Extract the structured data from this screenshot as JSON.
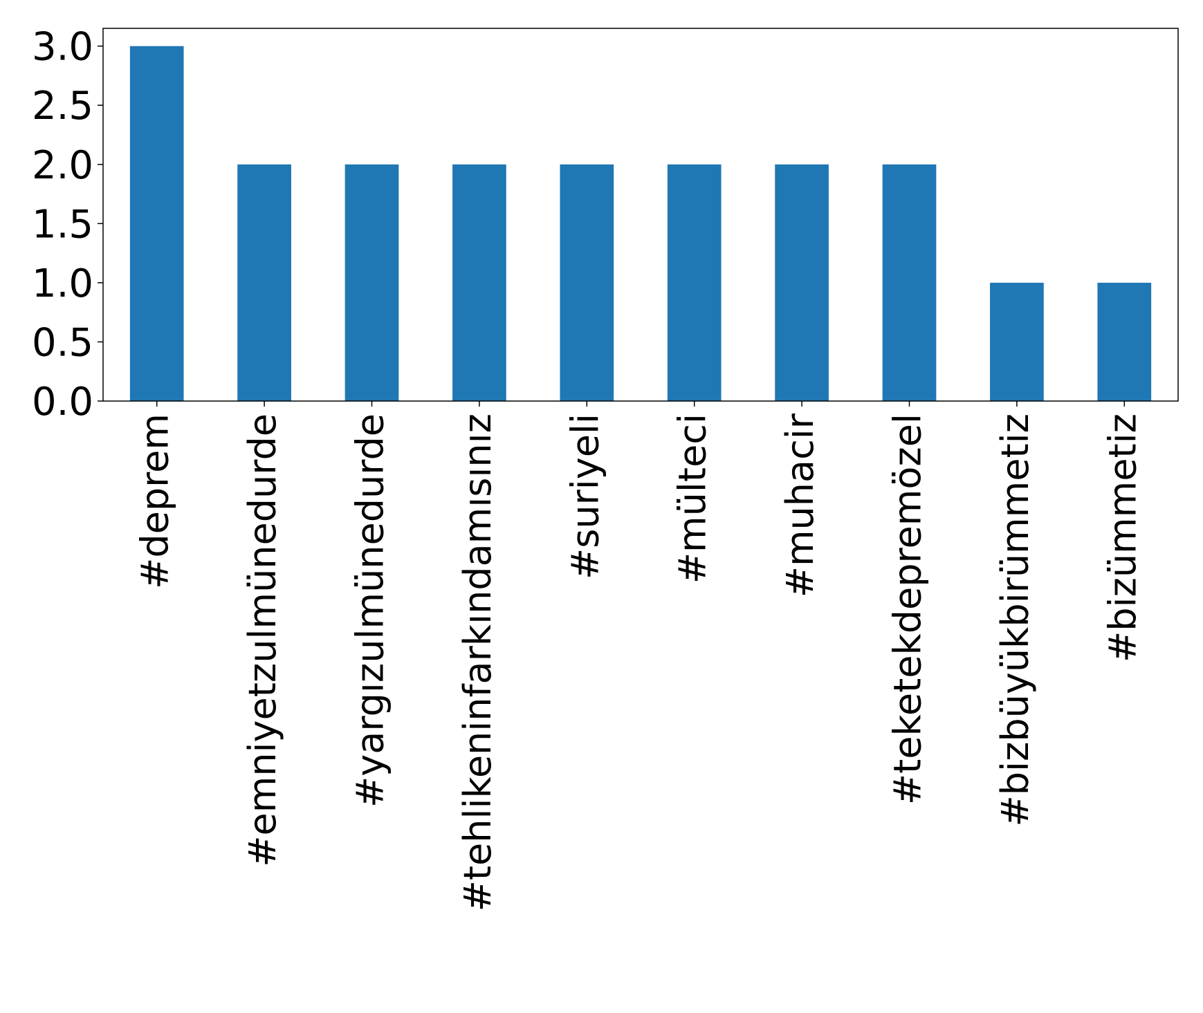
{
  "chart_data": {
    "type": "bar",
    "title": "",
    "xlabel": "",
    "ylabel": "",
    "categories": [
      "#deprem",
      "#emniyetzulmünedurde",
      "#yargızulmünedurde",
      "#tehlikeninfarkındamısınız",
      "#suriyeli",
      "#mülteci",
      "#muhacir",
      "#teketekdepremözel",
      "#bizbüyükbirümmetiz",
      "#bizümmetiz"
    ],
    "values": [
      3,
      2,
      2,
      2,
      2,
      2,
      2,
      2,
      1,
      1
    ],
    "ylim": [
      0,
      3.15
    ],
    "yticks": [
      "0.0",
      "0.5",
      "1.0",
      "1.5",
      "2.0",
      "2.5",
      "3.0"
    ],
    "bar_color": "#1f77b4",
    "grid": false,
    "legend": "none"
  }
}
